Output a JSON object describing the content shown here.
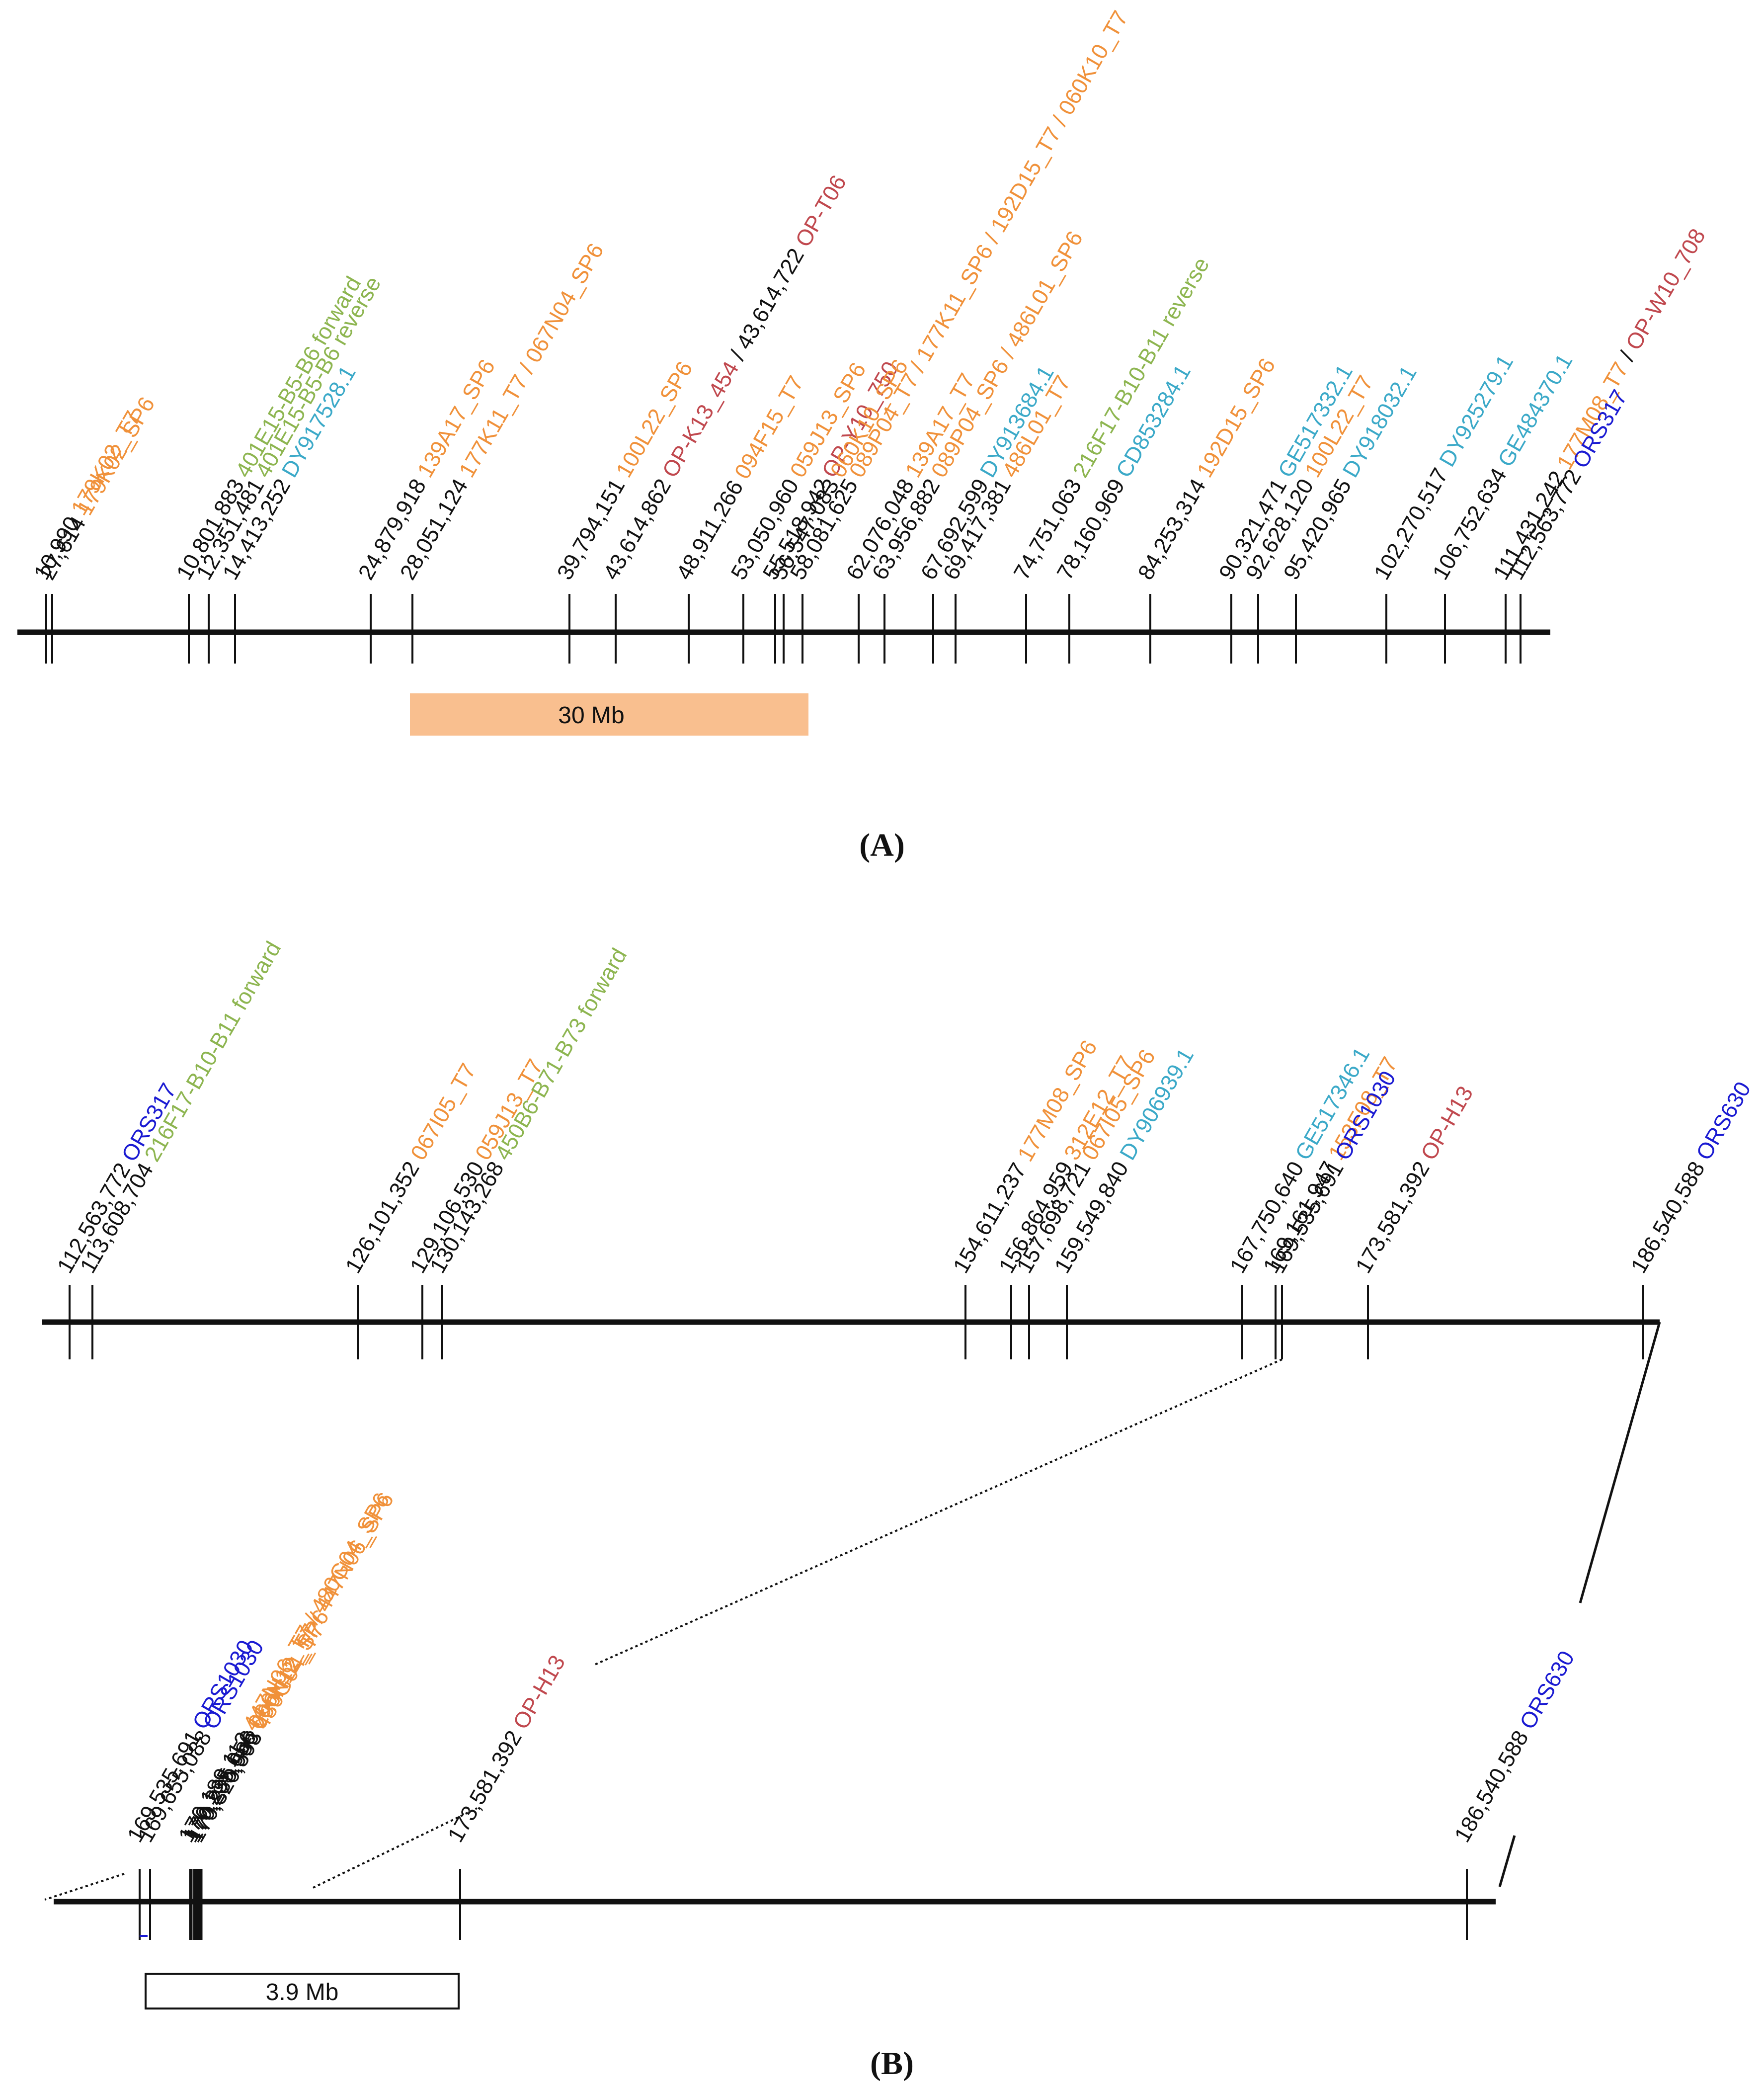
{
  "colors": {
    "black": "#111111",
    "orange": "#F0913A",
    "green": "#8DB550",
    "teal": "#3BA9C8",
    "red": "#C0484E",
    "blue": "#1A1AD2",
    "scale_fill": "#F9BF8F"
  },
  "panel_a": {
    "caption": "(A)",
    "scale_bar": "30 Mb",
    "markers": [
      {
        "pos": "10,990",
        "parts": [
          {
            "t": "179K02_T7",
            "c": "orange"
          }
        ]
      },
      {
        "pos": "27,614",
        "parts": [
          {
            "t": "179K02_SP6",
            "c": "orange"
          }
        ]
      },
      {
        "pos": "10,801,883",
        "parts": [
          {
            "t": "401E15-B5-B6 forward",
            "c": "green"
          }
        ]
      },
      {
        "pos": "12,351,481",
        "parts": [
          {
            "t": "401E15-B5-B6 reverse",
            "c": "green"
          }
        ]
      },
      {
        "pos": "14,413,252",
        "parts": [
          {
            "t": "DY917528.1",
            "c": "teal"
          }
        ]
      },
      {
        "pos": "24,879,918",
        "parts": [
          {
            "t": "139A17_SP6",
            "c": "orange"
          }
        ]
      },
      {
        "pos": "28,051,124",
        "parts": [
          {
            "t": "177K11_T7 / 067N04_SP6",
            "c": "orange"
          }
        ]
      },
      {
        "pos": "39,794,151",
        "parts": [
          {
            "t": "100L22_SP6",
            "c": "orange"
          }
        ]
      },
      {
        "pos": "43,614,862",
        "parts": [
          {
            "t": "OP-K13_454",
            "c": "red"
          },
          {
            "t": " / 43,614,722 ",
            "c": "black"
          },
          {
            "t": "OP-T06",
            "c": "red"
          }
        ]
      },
      {
        "pos": "48,911,266",
        "parts": [
          {
            "t": "094F15_T7",
            "c": "orange"
          }
        ]
      },
      {
        "pos": "53,050,960",
        "parts": [
          {
            "t": "059J13_SP6",
            "c": "orange"
          }
        ]
      },
      {
        "pos": "55,518,942",
        "parts": [
          {
            "t": "OP-Y10_750",
            "c": "red"
          }
        ]
      },
      {
        "pos": "56,547,083",
        "parts": [
          {
            "t": "060K10_SP6",
            "c": "orange"
          }
        ]
      },
      {
        "pos": "58,081,625",
        "parts": [
          {
            "t": "089P04_T7 / 177K11_SP6 / 192D15_T7 / 060K10_T7",
            "c": "orange"
          }
        ]
      },
      {
        "pos": "62,076,048",
        "parts": [
          {
            "t": "139A17_T7",
            "c": "orange"
          }
        ]
      },
      {
        "pos": "63,956,882",
        "parts": [
          {
            "t": "089P04_SP6 / 486L01_SP6",
            "c": "orange"
          }
        ]
      },
      {
        "pos": "67,692,599",
        "parts": [
          {
            "t": "DY913684.1",
            "c": "teal"
          }
        ]
      },
      {
        "pos": "69,417,381",
        "parts": [
          {
            "t": "486L01_T7",
            "c": "orange"
          }
        ]
      },
      {
        "pos": "74,751,063",
        "parts": [
          {
            "t": "216F17-B10-B11 reverse",
            "c": "green"
          }
        ]
      },
      {
        "pos": "78,160,969",
        "parts": [
          {
            "t": "CD853284.1",
            "c": "teal"
          }
        ]
      },
      {
        "pos": "84,253,314",
        "parts": [
          {
            "t": "192D15_SP6",
            "c": "orange"
          }
        ]
      },
      {
        "pos": "90,321,471",
        "parts": [
          {
            "t": "GE517332.1",
            "c": "teal"
          }
        ]
      },
      {
        "pos": "92,628,120",
        "parts": [
          {
            "t": "100L22_T7",
            "c": "orange"
          }
        ]
      },
      {
        "pos": "95,420,965",
        "parts": [
          {
            "t": "DY918032.1",
            "c": "teal"
          }
        ]
      },
      {
        "pos": "102,270,517",
        "parts": [
          {
            "t": "DY925279.1",
            "c": "teal"
          }
        ]
      },
      {
        "pos": "106,752,634",
        "parts": [
          {
            "t": "GE484370.1",
            "c": "teal"
          }
        ]
      },
      {
        "pos": "111,431,242",
        "parts": [
          {
            "t": "177M08_T7",
            "c": "orange"
          },
          {
            "t": " / ",
            "c": "black"
          },
          {
            "t": "OP-W10_708",
            "c": "red"
          }
        ]
      },
      {
        "pos": "112,563,772",
        "parts": [
          {
            "t": "ORS317",
            "c": "blue"
          }
        ]
      }
    ]
  },
  "panel_b": {
    "caption": "(B)",
    "scale_bar": "3.9 Mb",
    "markers": [
      {
        "pos": "112,563,772",
        "parts": [
          {
            "t": "ORS317",
            "c": "blue"
          }
        ]
      },
      {
        "pos": "113,608,704",
        "parts": [
          {
            "t": "216F17-B10-B11 forward",
            "c": "green"
          }
        ]
      },
      {
        "pos": "126,101,352",
        "parts": [
          {
            "t": "067I05_T7",
            "c": "orange"
          }
        ]
      },
      {
        "pos": "129,106,530",
        "parts": [
          {
            "t": "059J13_T7",
            "c": "orange"
          }
        ]
      },
      {
        "pos": "130,143,268",
        "parts": [
          {
            "t": "450B6-B71-B73 forward",
            "c": "green"
          }
        ]
      },
      {
        "pos": "154,611,237",
        "parts": [
          {
            "t": "177M08_SP6",
            "c": "orange"
          }
        ]
      },
      {
        "pos": "156,864,959",
        "parts": [
          {
            "t": "312E12_T7",
            "c": "orange"
          }
        ]
      },
      {
        "pos": "157,698,721",
        "parts": [
          {
            "t": "067I05_SP6",
            "c": "orange"
          }
        ]
      },
      {
        "pos": "159,549,840",
        "parts": [
          {
            "t": "DY906939.1",
            "c": "teal"
          }
        ]
      },
      {
        "pos": "167,750,640",
        "parts": [
          {
            "t": "GE517346.1",
            "c": "teal"
          }
        ]
      },
      {
        "pos": "169,161,947",
        "parts": [
          {
            "t": "153F08_T7",
            "c": "orange"
          }
        ]
      },
      {
        "pos": "169,535,691",
        "parts": [
          {
            "t": "ORS1030",
            "c": "blue"
          }
        ]
      },
      {
        "pos": "173,581,392",
        "parts": [
          {
            "t": "OP-H13",
            "c": "red"
          }
        ]
      },
      {
        "pos": "186,540,588",
        "parts": [
          {
            "t": "ORS630",
            "c": "blue"
          }
        ]
      }
    ],
    "zoom_markers": [
      {
        "pos": "169,535,691",
        "parts": [
          {
            "t": "ORS1030",
            "c": "blue"
          }
        ]
      },
      {
        "pos": "169,655,088",
        "parts": [
          {
            "t": "ORS1030",
            "c": "blue"
          }
        ]
      },
      {
        "pos": "170,189,112",
        "parts": [
          {
            "t": "447N06_T7 / 480G04_SP6",
            "c": "orange"
          }
        ]
      },
      {
        "pos": "170,235,056",
        "parts": [
          {
            "t": "006N12_T7 / 447N06_SP6",
            "c": "orange"
          }
        ]
      },
      {
        "pos": "170,285,986",
        "parts": [
          {
            "t": "006N12_SP6",
            "c": "orange"
          }
        ]
      },
      {
        "pos": "170,320,593",
        "parts": [
          {
            "t": "480G04_T7",
            "c": "orange"
          }
        ]
      },
      {
        "pos": "173,581,392",
        "parts": [
          {
            "t": "OP-H13",
            "c": "red"
          }
        ]
      },
      {
        "pos": "186,540,588",
        "parts": [
          {
            "t": "ORS630",
            "c": "blue"
          }
        ]
      }
    ]
  }
}
